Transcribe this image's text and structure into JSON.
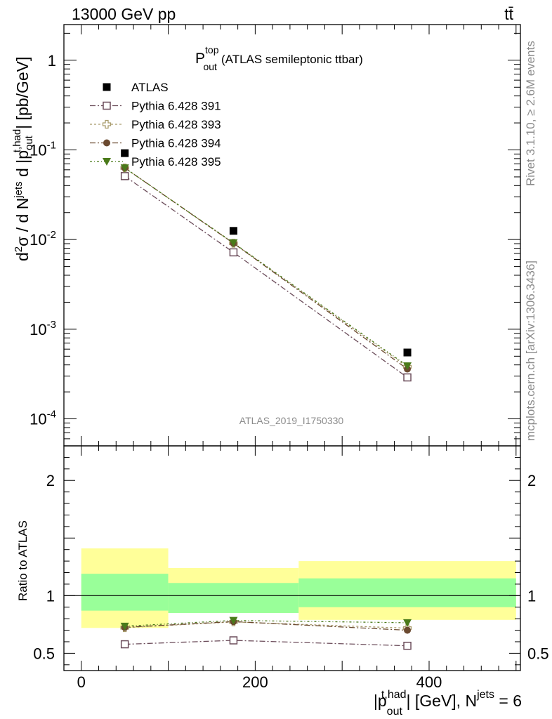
{
  "header": {
    "energy_label": "13000 GeV pp",
    "process_label": "tt̄"
  },
  "side_labels": {
    "rivet": "Rivet 3.1.10, ≥ 2.6M events",
    "mcplots": "mcplots.cern.ch [arXiv:1306.3436]"
  },
  "watermark": "ATLAS_2019_I1750330",
  "chart_title": {
    "main": "P",
    "sup": "top",
    "sub": "out",
    "suffix": "(ATLAS semileptonic ttbar)"
  },
  "y_axis_label_top": {
    "p1": "d",
    "p1_sup": "2",
    "p2": "σ / d N",
    "p2_sup": "jets",
    "p3": " d |p",
    "p3_sub": "out",
    "p3_sup": "t,had",
    "p4": "| [pb/GeV]"
  },
  "y_axis_label_bottom": "Ratio to ATLAS",
  "x_axis_label": {
    "p1": "|p",
    "p1_sub": "out",
    "p1_sup": "t,had",
    "p2": "| [GeV], N",
    "p2_sup": "jets",
    "p3": " = 6"
  },
  "colors": {
    "data": "#000000",
    "p391": "#6b4c5a",
    "p393": "#a89b6b",
    "p394": "#6b4a30",
    "p395": "#4a7a1a",
    "band_inner": "#99ff99",
    "band_outer": "#ffff99"
  },
  "chart_data": [
    {
      "type": "scatter",
      "title": "P_out^top (ATLAS semileptonic ttbar)",
      "yscale": "log",
      "ylim": [
        5e-05,
        2.5
      ],
      "xlim": [
        -20,
        505
      ],
      "ytick_labels": [
        "10^-4",
        "10^-3",
        "10^-2",
        "10^-1",
        "1"
      ],
      "legend_position": "top-left",
      "x": [
        50,
        175,
        375
      ],
      "series": [
        {
          "name": "ATLAS",
          "values": [
            0.092,
            0.0125,
            0.00055
          ],
          "marker": "filled-square"
        },
        {
          "name": "Pythia 6.428 391",
          "values": [
            0.051,
            0.0072,
            0.00029
          ],
          "marker": "open-square"
        },
        {
          "name": "Pythia 6.428 393",
          "values": [
            0.063,
            0.0091,
            0.00038
          ],
          "marker": "open-cross"
        },
        {
          "name": "Pythia 6.428 394",
          "values": [
            0.063,
            0.0091,
            0.00036
          ],
          "marker": "filled-circle"
        },
        {
          "name": "Pythia 6.428 395",
          "values": [
            0.063,
            0.0092,
            0.00039
          ],
          "marker": "filled-triangle-down"
        }
      ]
    },
    {
      "type": "scatter",
      "ylabel": "Ratio to ATLAS",
      "ylim": [
        0.35,
        2.3
      ],
      "xlim": [
        -20,
        505
      ],
      "yticks": [
        0.5,
        1,
        2
      ],
      "xticks": [
        0,
        200,
        400
      ],
      "bins": [
        [
          0,
          100
        ],
        [
          100,
          250
        ],
        [
          250,
          500
        ]
      ],
      "band_inner": [
        [
          0.87,
          1.19
        ],
        [
          0.85,
          1.11
        ],
        [
          0.9,
          1.15
        ]
      ],
      "band_outer": [
        [
          0.72,
          1.41
        ],
        [
          0.85,
          1.24
        ],
        [
          0.79,
          1.3
        ]
      ],
      "x": [
        50,
        175,
        375
      ],
      "series": [
        {
          "name": "Pythia 6.428 391",
          "values": [
            0.578,
            0.612,
            0.565
          ],
          "errors": [
            0.01,
            0.012,
            0.025
          ]
        },
        {
          "name": "Pythia 6.428 393",
          "values": [
            0.722,
            0.772,
            0.718
          ],
          "errors": [
            0.012,
            0.014,
            0.025
          ]
        },
        {
          "name": "Pythia 6.428 394",
          "values": [
            0.725,
            0.775,
            0.7
          ],
          "errors": [
            0.012,
            0.014,
            0.025
          ]
        },
        {
          "name": "Pythia 6.428 395",
          "values": [
            0.735,
            0.785,
            0.765
          ],
          "errors": [
            0.012,
            0.014,
            0.02
          ]
        }
      ]
    }
  ]
}
